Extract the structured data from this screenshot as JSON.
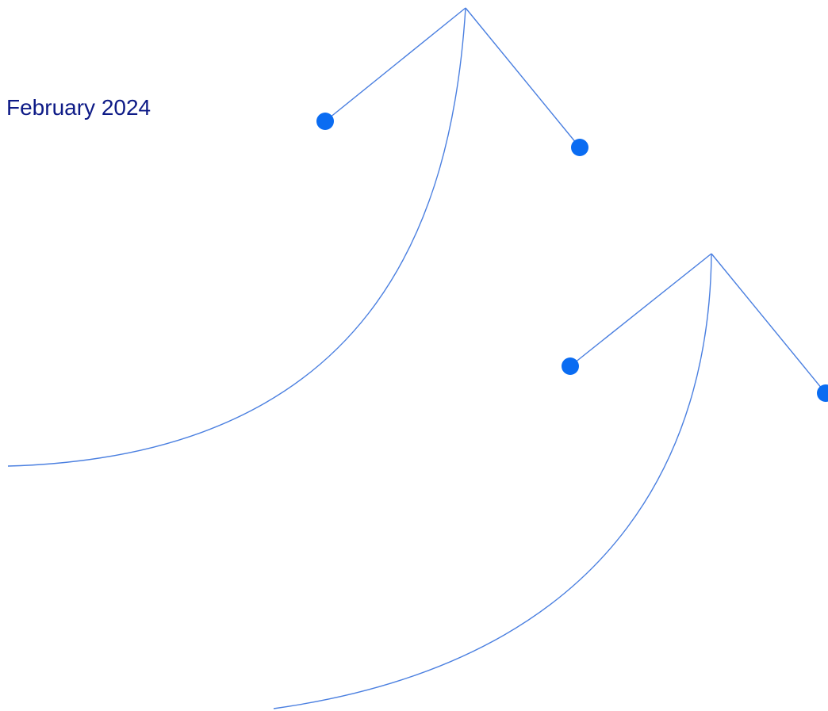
{
  "date_label": "February 2024",
  "colors": {
    "text": "#0d1a86",
    "line": "#4a7fe0",
    "dot": "#0a6cf2",
    "background": "#ffffff"
  },
  "motifs": [
    {
      "name": "upper-swoosh",
      "nodes": 2
    },
    {
      "name": "lower-swoosh",
      "nodes": 2
    }
  ]
}
